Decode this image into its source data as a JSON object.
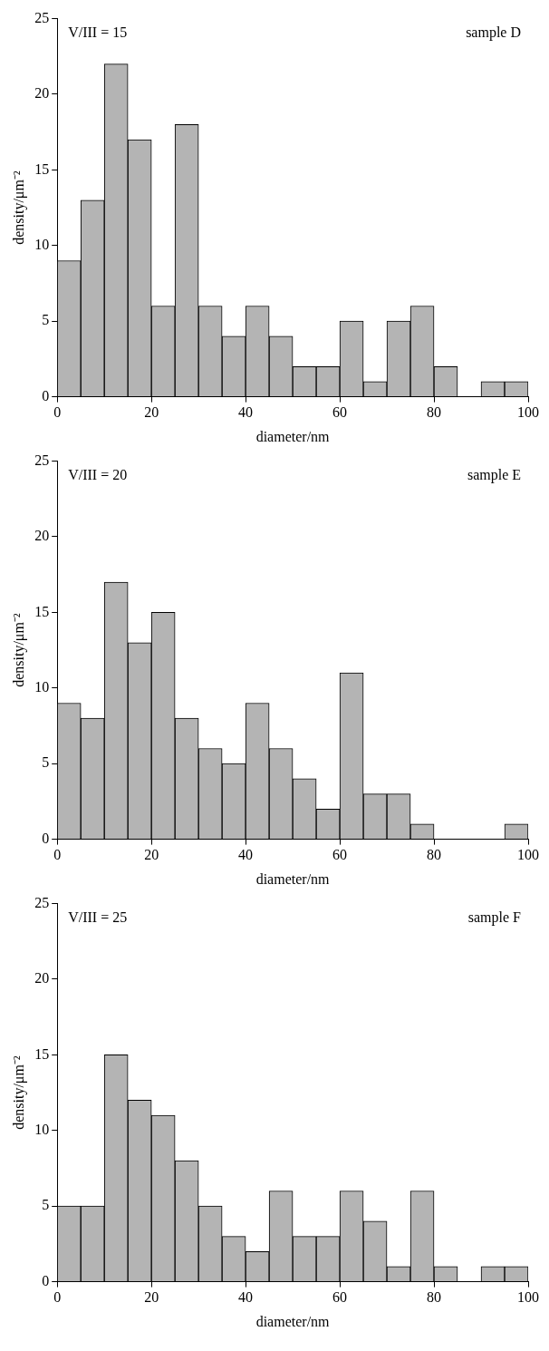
{
  "chart_data": [
    {
      "type": "histogram",
      "bins": [
        0,
        5,
        10,
        15,
        20,
        25,
        30,
        35,
        40,
        45,
        50,
        55,
        60,
        65,
        70,
        75,
        80,
        85,
        90,
        95,
        100
      ],
      "values": [
        9,
        13,
        22,
        17,
        6,
        18,
        6,
        4,
        6,
        4,
        2,
        2,
        5,
        1,
        5,
        6,
        2,
        0,
        1,
        1
      ],
      "color": "#b4b4b4",
      "xlim": [
        0,
        100
      ],
      "xticks": [
        0,
        20,
        40,
        60,
        80,
        100
      ],
      "ylim": [
        0,
        25
      ],
      "yticks": [
        0,
        5,
        10,
        15,
        20,
        25
      ],
      "xlabel": "diameter/nm",
      "ylabel": "density/μm⁻²",
      "annotations": [
        "V/III = 15",
        "sample D"
      ],
      "grid": false,
      "legend": false
    },
    {
      "type": "histogram",
      "bins": [
        0,
        5,
        10,
        15,
        20,
        25,
        30,
        35,
        40,
        45,
        50,
        55,
        60,
        65,
        70,
        75,
        80,
        85,
        90,
        95,
        100
      ],
      "values": [
        9,
        8,
        17,
        13,
        15,
        8,
        6,
        5,
        9,
        6,
        4,
        2,
        11,
        3,
        3,
        1,
        0,
        0,
        0,
        1
      ],
      "color": "#b4b4b4",
      "xlim": [
        0,
        100
      ],
      "xticks": [
        0,
        20,
        40,
        60,
        80,
        100
      ],
      "ylim": [
        0,
        25
      ],
      "yticks": [
        0,
        5,
        10,
        15,
        20,
        25
      ],
      "xlabel": "diameter/nm",
      "ylabel": "density/μm⁻²",
      "annotations": [
        "V/III = 20",
        "sample E"
      ],
      "grid": false,
      "legend": false
    },
    {
      "type": "histogram",
      "bins": [
        0,
        5,
        10,
        15,
        20,
        25,
        30,
        35,
        40,
        45,
        50,
        55,
        60,
        65,
        70,
        75,
        80,
        85,
        90,
        95,
        100
      ],
      "values": [
        5,
        5,
        15,
        12,
        11,
        8,
        5,
        3,
        2,
        6,
        3,
        3,
        6,
        4,
        1,
        6,
        1,
        0,
        1,
        1
      ],
      "color": "#b4b4b4",
      "xlim": [
        0,
        100
      ],
      "xticks": [
        0,
        20,
        40,
        60,
        80,
        100
      ],
      "ylim": [
        0,
        25
      ],
      "yticks": [
        0,
        5,
        10,
        15,
        20,
        25
      ],
      "xlabel": "diameter/nm",
      "ylabel": "density/μm⁻²",
      "annotations": [
        "V/III = 25",
        "sample F"
      ],
      "grid": false,
      "legend": false
    }
  ]
}
